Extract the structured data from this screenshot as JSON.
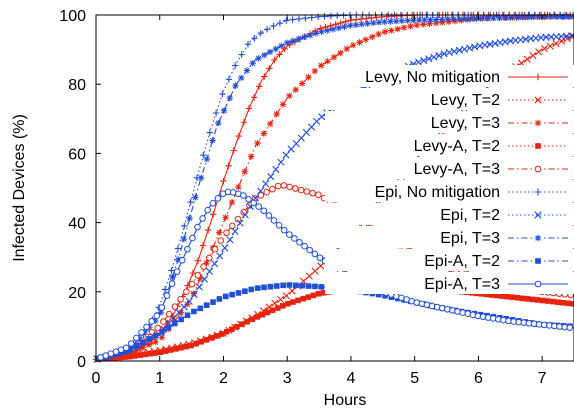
{
  "chart_data": {
    "type": "line",
    "title": "",
    "xlabel": "Hours",
    "ylabel": "Infected Devices (%)",
    "xlim": [
      0,
      7.5
    ],
    "ylim": [
      0,
      100
    ],
    "x_ticks": [
      "0",
      "1",
      "2",
      "3",
      "4",
      "5",
      "6",
      "7"
    ],
    "y_ticks": [
      "0",
      "20",
      "40",
      "60",
      "80",
      "100"
    ],
    "grid": false,
    "legend_position": "right",
    "colors": {
      "red": "#e8230f",
      "blue": "#1f4ed9"
    },
    "series": [
      {
        "name": "Levy, No mitigation",
        "color": "#e8230f",
        "dash": "solid",
        "marker": "plus",
        "x": [
          0,
          0.5,
          0.8,
          1.0,
          1.2,
          1.4,
          1.6,
          1.8,
          2.0,
          2.2,
          2.4,
          2.6,
          2.8,
          3.0,
          3.5,
          4.0,
          4.5,
          5.0,
          6.0,
          7.5
        ],
        "y": [
          0.5,
          2,
          5,
          8,
          13,
          20,
          29,
          40,
          52,
          63,
          73,
          81,
          87,
          91,
          96,
          98.5,
          99.5,
          100,
          100,
          100
        ]
      },
      {
        "name": "Levy, T=2",
        "color": "#e8230f",
        "dash": "dotted",
        "marker": "x",
        "x": [
          0,
          0.5,
          1.0,
          1.5,
          2.0,
          2.5,
          3.0,
          3.5,
          4.0,
          4.5,
          5.0,
          5.5,
          6.0,
          6.5,
          7.0,
          7.5
        ],
        "y": [
          0.5,
          1.5,
          3,
          5,
          8,
          13,
          19,
          27,
          36,
          47,
          58,
          68,
          77,
          84,
          90,
          94
        ]
      },
      {
        "name": "Levy, T=3",
        "color": "#e8230f",
        "dash": "dashdot",
        "marker": "star",
        "x": [
          0,
          0.5,
          1.0,
          1.5,
          2.0,
          2.5,
          3.0,
          3.5,
          4.0,
          4.5,
          5.0,
          5.5,
          6.0,
          7.0,
          7.5
        ],
        "y": [
          0.5,
          2,
          6,
          18,
          40,
          62,
          76,
          85,
          91,
          95,
          97,
          98,
          99,
          99.5,
          99.5
        ]
      },
      {
        "name": "Levy-A, T=2",
        "color": "#e8230f",
        "dash": "dotted",
        "marker": "filled-square",
        "x": [
          0,
          0.5,
          1.0,
          1.5,
          2.0,
          2.5,
          3.0,
          3.5,
          4.0,
          4.5,
          5.0,
          5.5,
          6.0,
          6.5,
          7.0,
          7.5
        ],
        "y": [
          0.5,
          1.2,
          2.5,
          4.5,
          8,
          12.5,
          16.5,
          19.5,
          21,
          21.2,
          21,
          20.5,
          19.5,
          18.5,
          17.5,
          16.5
        ]
      },
      {
        "name": "Levy-A, T=3",
        "color": "#e8230f",
        "dash": "dashdot",
        "marker": "circle",
        "x": [
          0,
          0.5,
          1.0,
          1.5,
          2.0,
          2.5,
          2.9,
          3.5,
          4.0,
          4.5,
          5.0,
          5.5,
          6.0,
          6.5,
          7.0,
          7.5
        ],
        "y": [
          0.5,
          3,
          10,
          22,
          36,
          47,
          51,
          48,
          42,
          36,
          31,
          27,
          24,
          22,
          20,
          19
        ]
      },
      {
        "name": "Epi, No mitigation",
        "color": "#1f4ed9",
        "dash": "dotted",
        "marker": "plus",
        "x": [
          0,
          0.5,
          0.8,
          1.0,
          1.2,
          1.4,
          1.6,
          1.8,
          2.0,
          2.2,
          2.4,
          2.6,
          2.8,
          3.0,
          3.5,
          4.0,
          5.0,
          7.5
        ],
        "y": [
          0.5,
          3,
          9,
          16,
          27,
          40,
          54,
          67,
          78,
          86,
          92,
          95,
          97,
          98.5,
          99.5,
          100,
          100,
          100
        ]
      },
      {
        "name": "Epi, T=2",
        "color": "#1f4ed9",
        "dash": "dotted",
        "marker": "x",
        "x": [
          0,
          0.5,
          1.0,
          1.5,
          2.0,
          2.5,
          3.0,
          3.5,
          4.0,
          4.5,
          5.0,
          5.5,
          6.0,
          6.5,
          7.0,
          7.5
        ],
        "y": [
          0.5,
          3,
          8,
          18,
          32,
          47,
          60,
          70,
          77,
          82,
          86,
          89,
          91,
          92.5,
          93.5,
          94
        ]
      },
      {
        "name": "Epi, T=3",
        "color": "#1f4ed9",
        "dash": "dashdot",
        "marker": "star",
        "x": [
          0,
          0.5,
          1.0,
          1.3,
          1.6,
          1.9,
          2.2,
          2.5,
          2.8,
          3.0,
          3.5,
          4.0,
          4.5,
          5.0,
          6.0,
          7.0,
          7.5
        ],
        "y": [
          0.5,
          3,
          13,
          30,
          50,
          68,
          80,
          87,
          90,
          92,
          95,
          97,
          98,
          98.5,
          99,
          99.5,
          99.5
        ]
      },
      {
        "name": "Epi-A, T=2",
        "color": "#1f4ed9",
        "dash": "dashdot",
        "marker": "filled-square",
        "x": [
          0,
          0.5,
          1.0,
          1.5,
          2.0,
          2.5,
          3.0,
          3.5,
          4.0,
          4.5,
          5.0,
          5.5,
          6.0,
          6.5,
          7.0,
          7.5
        ],
        "y": [
          0.5,
          3,
          8,
          14,
          18.5,
          21,
          22,
          21.5,
          20.5,
          19,
          17,
          15,
          13.5,
          12,
          10.5,
          10
        ]
      },
      {
        "name": "Epi-A, T=3",
        "color": "#1f4ed9",
        "dash": "solid",
        "marker": "circle",
        "x": [
          0,
          0.5,
          1.0,
          1.3,
          1.6,
          1.8,
          2.0,
          2.1,
          2.3,
          2.6,
          3.0,
          3.5,
          4.0,
          4.5,
          5.0,
          5.5,
          6.0,
          6.5,
          7.0,
          7.5
        ],
        "y": [
          0.5,
          4,
          14,
          27,
          39,
          45,
          48.5,
          49,
          48,
          44,
          37,
          30,
          24,
          20,
          17,
          15,
          13,
          11.5,
          10.5,
          9.5
        ]
      }
    ]
  }
}
